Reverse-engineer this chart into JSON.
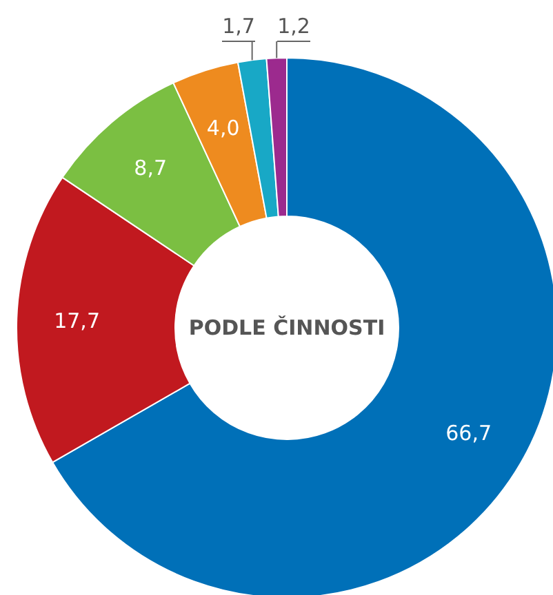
{
  "chart_data": {
    "type": "donut",
    "title": "PODLE ČINNOSTI",
    "categories": [
      null,
      null,
      null,
      null,
      null,
      null
    ],
    "values": [
      66.7,
      17.7,
      8.7,
      4.0,
      1.7,
      1.2
    ],
    "colors": [
      "#0070b8",
      "#c1191f",
      "#7bbf42",
      "#ee8b1f",
      "#18a8c6",
      "#9c2a8e"
    ],
    "value_labels": [
      "66,7",
      "17,7",
      "8,7",
      "4,0",
      "1,7",
      "1,2"
    ]
  }
}
